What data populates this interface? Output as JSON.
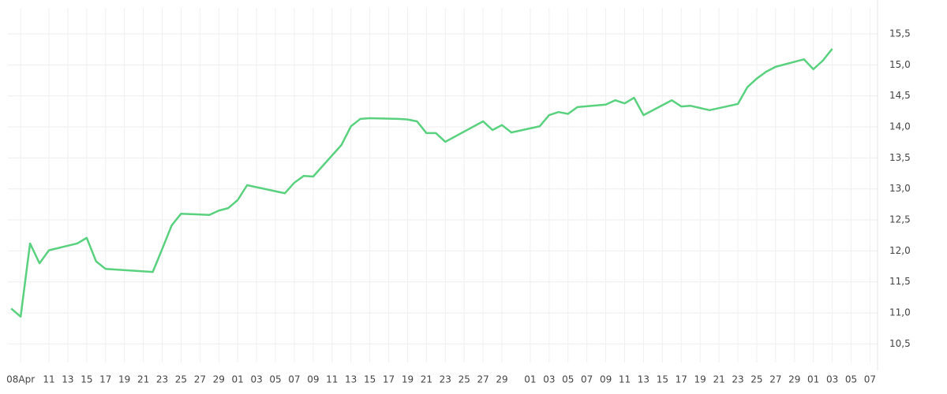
{
  "chart_data": {
    "type": "line",
    "x": [
      -1,
      0,
      1,
      2,
      3,
      6,
      7,
      8,
      9,
      14,
      15,
      16,
      17,
      20,
      21,
      22,
      23,
      24,
      28,
      29,
      30,
      31,
      34,
      35,
      36,
      37,
      40,
      41,
      42,
      43,
      44,
      45,
      49,
      50,
      51,
      52,
      55,
      56,
      57,
      58,
      59,
      62,
      63,
      64,
      65,
      66,
      69,
      70,
      71,
      73,
      76,
      77,
      78,
      79,
      80,
      83,
      84,
      85,
      86
    ],
    "series": [
      {
        "color": "#5ad17f",
        "values": [
          11.07,
          10.94,
          12.12,
          11.8,
          12.01,
          12.12,
          12.21,
          11.83,
          11.71,
          11.66,
          12.03,
          12.41,
          12.6,
          12.58,
          12.65,
          12.69,
          12.82,
          13.06,
          12.93,
          13.1,
          13.21,
          13.2,
          13.71,
          14.01,
          14.13,
          14.14,
          14.13,
          14.12,
          14.09,
          13.9,
          13.9,
          13.76,
          14.09,
          13.95,
          14.03,
          13.91,
          14.01,
          14.19,
          14.24,
          14.21,
          14.32,
          14.36,
          14.43,
          14.38,
          14.47,
          14.19,
          14.43,
          14.33,
          14.34,
          14.27,
          14.37,
          14.64,
          14.78,
          14.89,
          14.97,
          15.09,
          14.93,
          15.07,
          15.26
        ]
      }
    ],
    "xlim": [
      -1.35,
      90.8
    ],
    "xticks": [
      {
        "value": 0,
        "label": "08Apr"
      },
      {
        "value": 3,
        "label": "11"
      },
      {
        "value": 5,
        "label": "13"
      },
      {
        "value": 7,
        "label": "15"
      },
      {
        "value": 9,
        "label": "17"
      },
      {
        "value": 11,
        "label": "19"
      },
      {
        "value": 13,
        "label": "21"
      },
      {
        "value": 15,
        "label": "23"
      },
      {
        "value": 17,
        "label": "25"
      },
      {
        "value": 19,
        "label": "27"
      },
      {
        "value": 21,
        "label": "29"
      },
      {
        "value": 23,
        "label": "01"
      },
      {
        "value": 25,
        "label": "03"
      },
      {
        "value": 27,
        "label": "05"
      },
      {
        "value": 29,
        "label": "07"
      },
      {
        "value": 31,
        "label": "09"
      },
      {
        "value": 33,
        "label": "11"
      },
      {
        "value": 35,
        "label": "13"
      },
      {
        "value": 37,
        "label": "15"
      },
      {
        "value": 39,
        "label": "17"
      },
      {
        "value": 41,
        "label": "19"
      },
      {
        "value": 43,
        "label": "21"
      },
      {
        "value": 45,
        "label": "23"
      },
      {
        "value": 47,
        "label": "25"
      },
      {
        "value": 49,
        "label": "27"
      },
      {
        "value": 51,
        "label": "29"
      },
      {
        "value": 54,
        "label": "01"
      },
      {
        "value": 56,
        "label": "03"
      },
      {
        "value": 58,
        "label": "05"
      },
      {
        "value": 60,
        "label": "07"
      },
      {
        "value": 62,
        "label": "09"
      },
      {
        "value": 64,
        "label": "11"
      },
      {
        "value": 66,
        "label": "13"
      },
      {
        "value": 68,
        "label": "15"
      },
      {
        "value": 70,
        "label": "17"
      },
      {
        "value": 72,
        "label": "19"
      },
      {
        "value": 74,
        "label": "21"
      },
      {
        "value": 76,
        "label": "23"
      },
      {
        "value": 78,
        "label": "25"
      },
      {
        "value": 80,
        "label": "27"
      },
      {
        "value": 82,
        "label": "29"
      },
      {
        "value": 84,
        "label": "01"
      },
      {
        "value": 86,
        "label": "03"
      },
      {
        "value": 88,
        "label": "05"
      },
      {
        "value": 90,
        "label": "07"
      }
    ],
    "ylim": [
      10.2,
      15.92
    ],
    "yticks": [
      {
        "value": 10.5,
        "label": "10,5"
      },
      {
        "value": 11,
        "label": "11,0"
      },
      {
        "value": 11.5,
        "label": "11,5"
      },
      {
        "value": 12,
        "label": "12,0"
      },
      {
        "value": 12.5,
        "label": "12,5"
      },
      {
        "value": 13,
        "label": "13,0"
      },
      {
        "value": 13.5,
        "label": "13,5"
      },
      {
        "value": 14,
        "label": "14,0"
      },
      {
        "value": 14.5,
        "label": "14,5"
      },
      {
        "value": 15,
        "label": "15,0"
      },
      {
        "value": 15.5,
        "label": "15,5"
      }
    ],
    "grid": true,
    "y_axis_side": "right"
  }
}
